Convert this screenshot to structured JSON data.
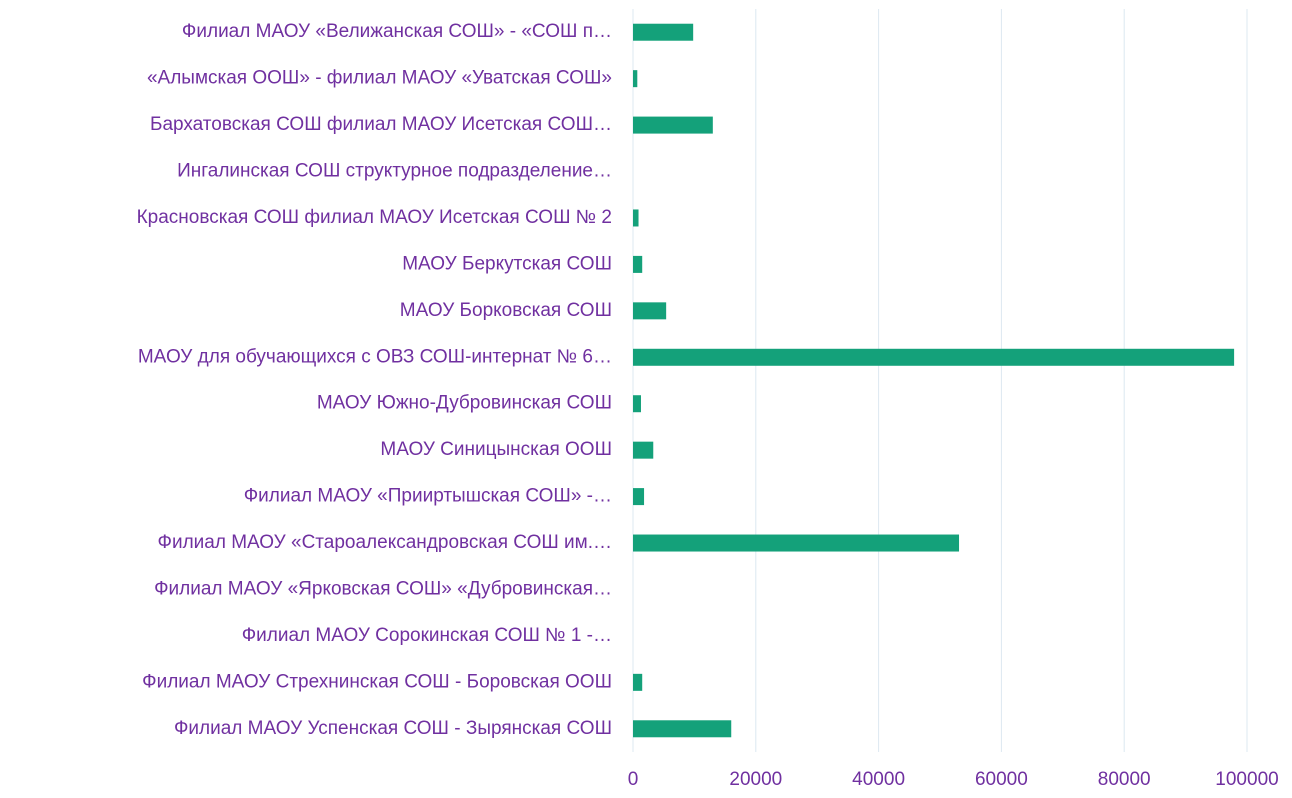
{
  "chart_data": {
    "type": "barh",
    "categories": [
      "Филиал МАОУ «Велижанская СОШ» - «СОШ п…",
      "«Алымская ООШ» - филиал МАОУ «Уватская СОШ»",
      "Бархатовская СОШ филиал МАОУ Исетская СОШ…",
      "Ингалинская СОШ структурное подразделение…",
      "Красновская СОШ филиал МАОУ Исетская СОШ № 2",
      "МАОУ Беркутская СОШ",
      "МАОУ Борковская СОШ",
      "МАОУ для обучающихся с ОВЗ СОШ-интернат № 6…",
      "МАОУ Южно-Дубровинская СОШ",
      "МАОУ Синицынская ООШ",
      "Филиал МАОУ «Прииртышская СОШ» -…",
      "Филиал МАОУ «Староалександровская СОШ им.…",
      "Филиал МАОУ «Ярковская СОШ» «Дубровинская…",
      "Филиал МАОУ Сорокинская СОШ № 1 -…",
      "Филиал МАОУ Стрехнинская СОШ - Боровская ООШ",
      "Филиал МАОУ Успенская СОШ - Зырянская СОШ"
    ],
    "values": [
      9800,
      700,
      13000,
      0,
      900,
      1500,
      5400,
      97900,
      1300,
      3300,
      1800,
      53100,
      0,
      0,
      1500,
      16000
    ],
    "color": "#14a17a",
    "xlim": [
      0,
      100000
    ],
    "xticks": [
      0,
      20000,
      40000,
      60000,
      80000,
      100000
    ],
    "grid": true
  }
}
